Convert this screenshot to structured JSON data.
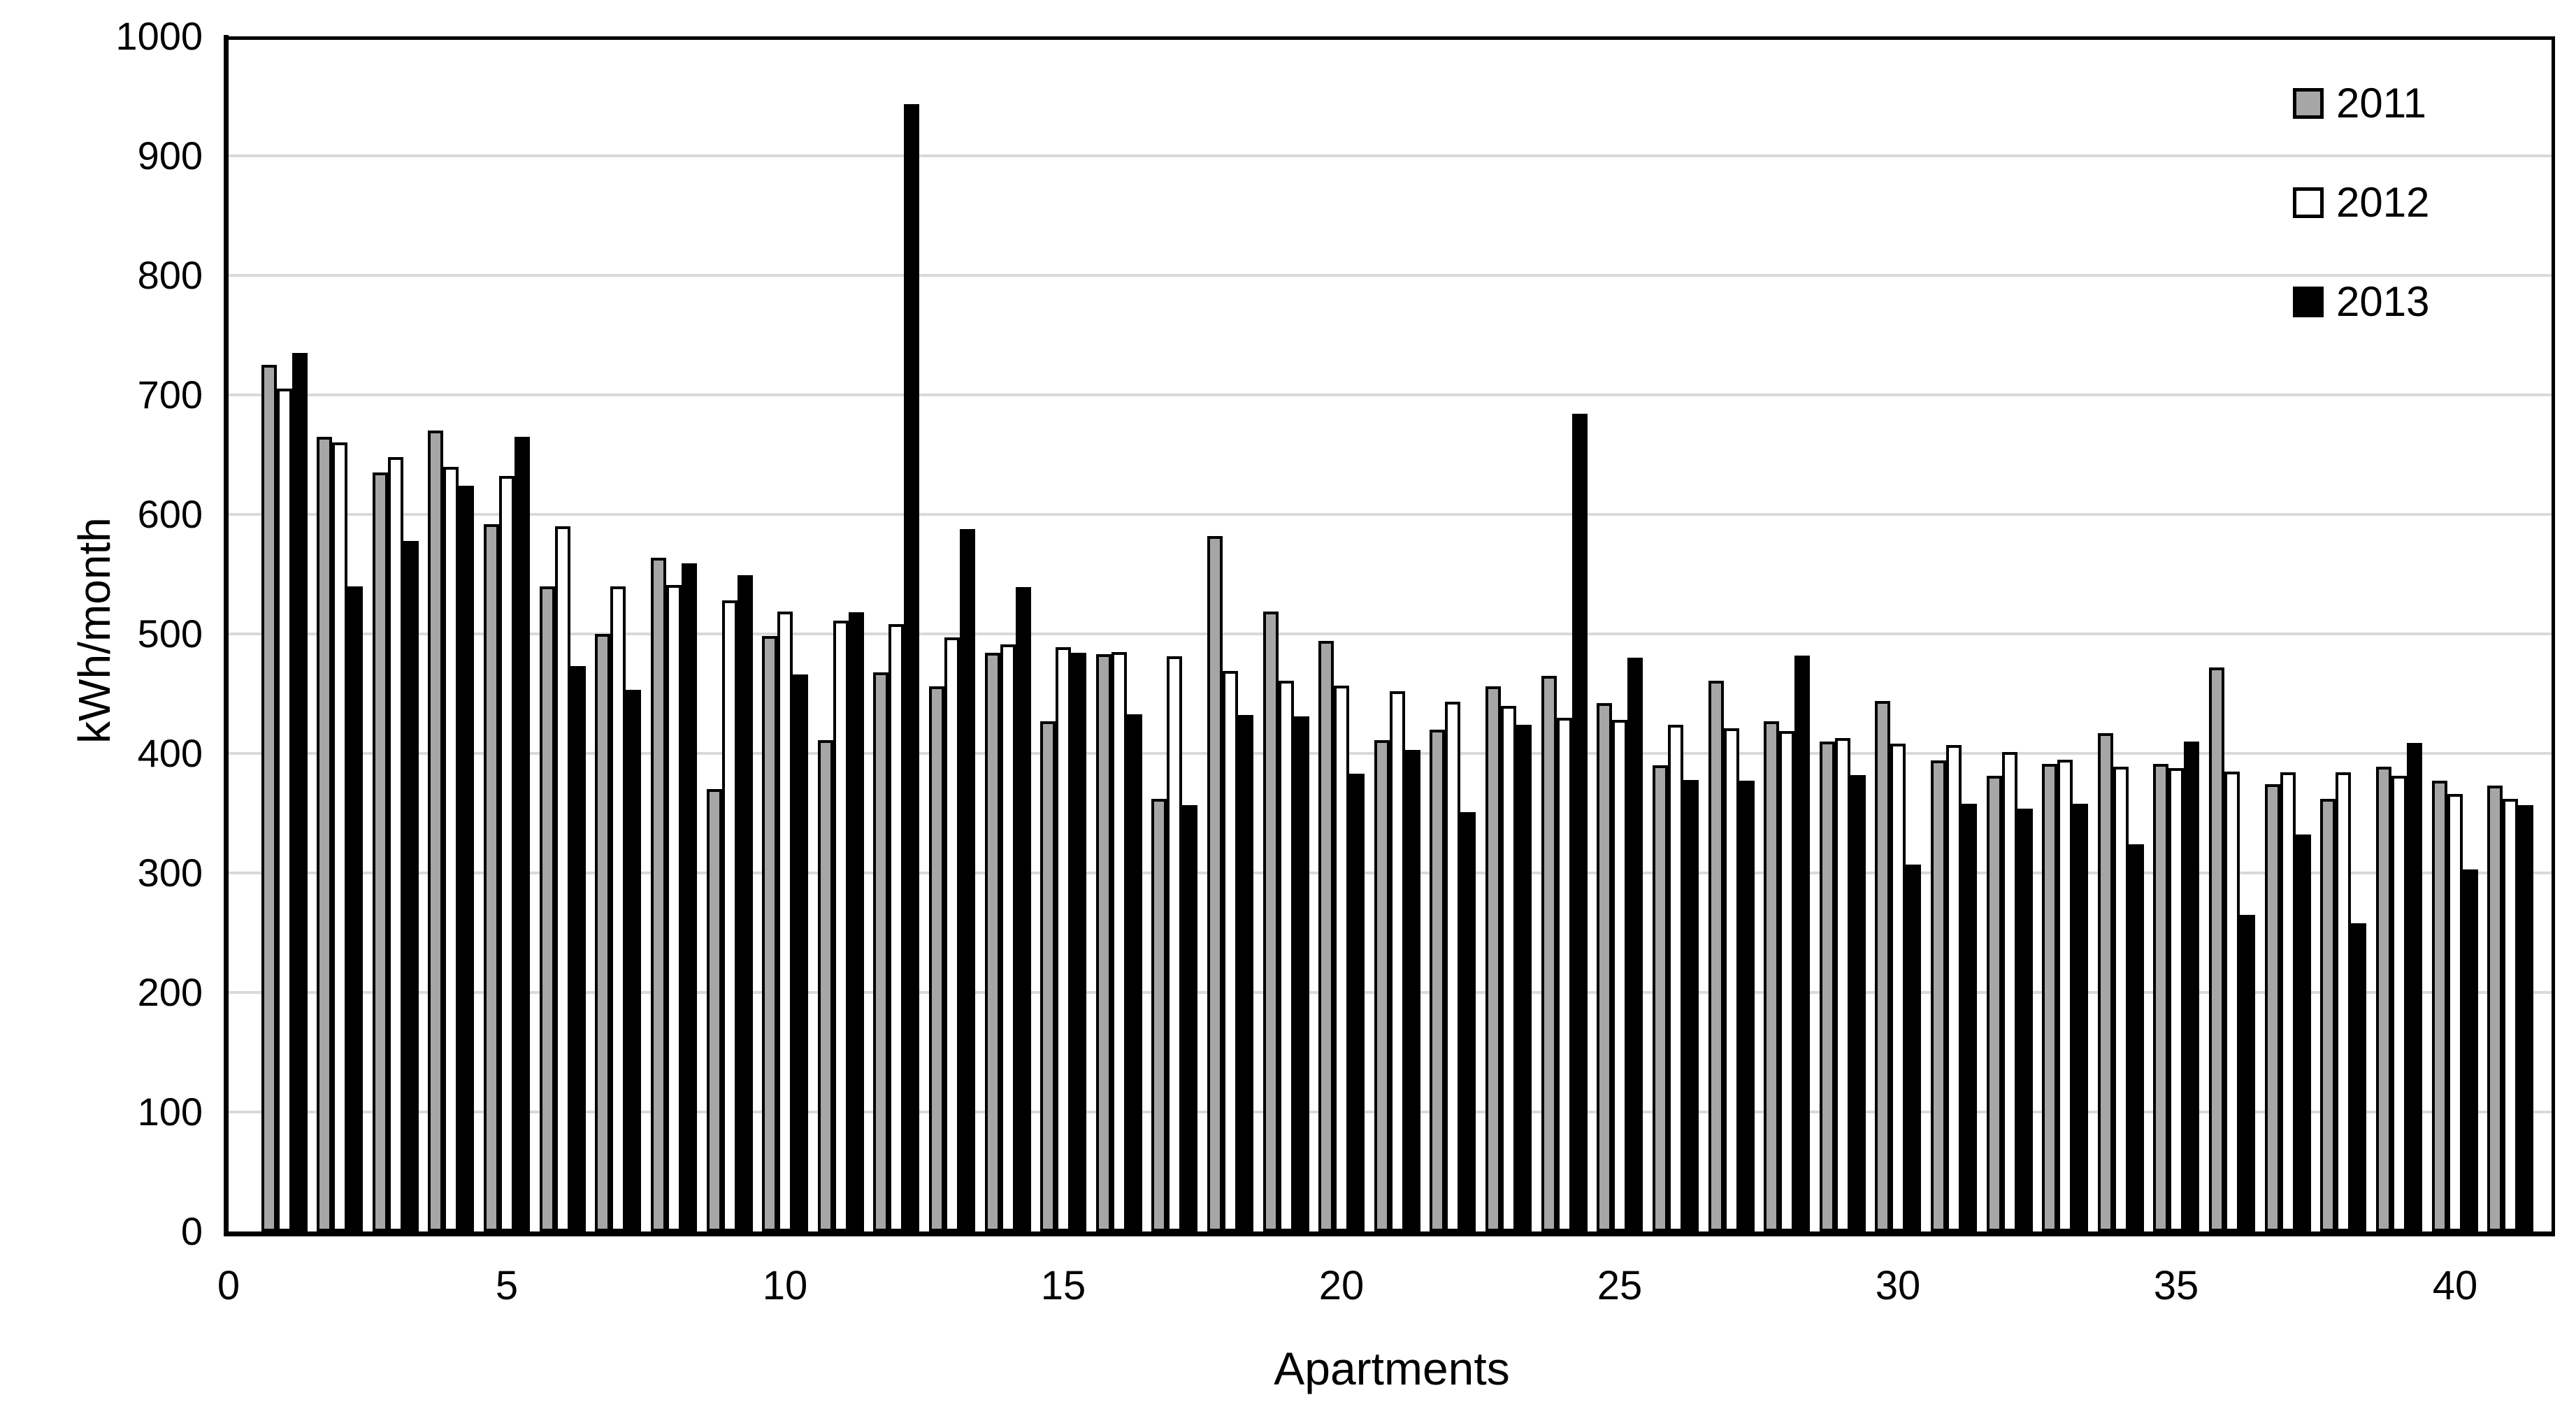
{
  "chart_data": {
    "type": "bar",
    "title": "",
    "xlabel": "Apartments",
    "ylabel": "kWh/month",
    "ylim": [
      0,
      1000
    ],
    "yticks": [
      0,
      100,
      200,
      300,
      400,
      500,
      600,
      700,
      800,
      900,
      1000
    ],
    "xticks": [
      0,
      5,
      10,
      15,
      20,
      25,
      30,
      35,
      40
    ],
    "grid": true,
    "gridline_color": "#d9d9d9",
    "outline_color": "#000000",
    "background_color": "#ffffff",
    "legend_position": "top-right",
    "categories": [
      1,
      2,
      3,
      4,
      5,
      6,
      7,
      8,
      9,
      10,
      11,
      12,
      13,
      14,
      15,
      16,
      17,
      18,
      19,
      20,
      21,
      22,
      23,
      24,
      25,
      26,
      27,
      28,
      29,
      30,
      31,
      32,
      33,
      34,
      35,
      36,
      37,
      38,
      39,
      40,
      41
    ],
    "series": [
      {
        "name": "2011",
        "color": "#a6a6a6",
        "values": [
          725,
          665,
          635,
          670,
          592,
          540,
          500,
          564,
          370,
          498,
          411,
          468,
          456,
          484,
          427,
          483,
          362,
          582,
          519,
          494,
          411,
          420,
          456,
          465,
          442,
          390,
          461,
          427,
          410,
          444,
          394,
          381,
          391,
          417,
          391,
          472,
          374,
          362,
          389,
          377,
          373
        ]
      },
      {
        "name": "2012",
        "color": "#ffffff",
        "values": [
          705,
          660,
          648,
          640,
          632,
          590,
          540,
          541,
          528,
          519,
          511,
          508,
          497,
          491,
          489,
          485,
          481,
          469,
          461,
          457,
          452,
          443,
          440,
          430,
          428,
          424,
          421,
          419,
          413,
          408,
          407,
          401,
          395,
          389,
          388,
          385,
          384,
          384,
          381,
          366,
          362
        ]
      },
      {
        "name": "2013",
        "color": "#000000",
        "values": [
          735,
          540,
          578,
          624,
          665,
          473,
          453,
          559,
          549,
          466,
          518,
          943,
          588,
          539,
          484,
          433,
          357,
          432,
          431,
          383,
          403,
          351,
          424,
          684,
          480,
          378,
          377,
          482,
          382,
          307,
          358,
          354,
          358,
          324,
          410,
          265,
          332,
          258,
          409,
          303,
          357
        ]
      }
    ]
  }
}
